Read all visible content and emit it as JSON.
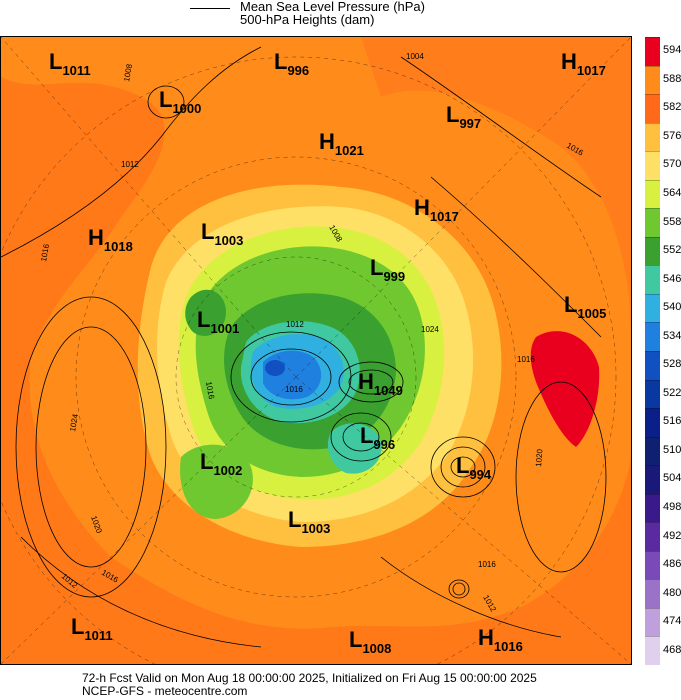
{
  "header": {
    "line1": "Mean Sea Level Pressure (hPa)",
    "line2": "500-hPa Heights (dam)"
  },
  "footer": {
    "line1": "72-h Fcst Valid on Mon Aug 18 00:00:00 2025, Initialized on Fri Aug 15 00:00:00 2025",
    "line2": "NCEP-GFS  - meteocentre.com"
  },
  "colorbar": {
    "levels": [
      "594",
      "588",
      "582",
      "576",
      "570",
      "564",
      "558",
      "552",
      "546",
      "540",
      "534",
      "528",
      "522",
      "516",
      "510",
      "504",
      "498",
      "492",
      "486",
      "480",
      "474",
      "468"
    ],
    "colors": [
      "#e8001e",
      "#ff8c1a",
      "#ff6a1a",
      "#ffc040",
      "#ffe066",
      "#d8f040",
      "#70c830",
      "#3aa030",
      "#40c8a0",
      "#30b0e0",
      "#2080e0",
      "#1050c0",
      "#0838a0",
      "#0a2088",
      "#102070",
      "#1a1878",
      "#3a1a8a",
      "#5a2aa0",
      "#7a4ab8",
      "#9a72c8",
      "#c0a0dc",
      "#e0d0ee"
    ]
  },
  "pressure_systems": [
    {
      "type": "L",
      "value": "1011"
    },
    {
      "type": "L",
      "value": "996"
    },
    {
      "type": "H",
      "value": "1017"
    },
    {
      "type": "L",
      "value": "1000"
    },
    {
      "type": "L",
      "value": "997"
    },
    {
      "type": "H",
      "value": "1021"
    },
    {
      "type": "H",
      "value": "1017"
    },
    {
      "type": "H",
      "value": "1018"
    },
    {
      "type": "L",
      "value": "1003"
    },
    {
      "type": "L",
      "value": "999"
    },
    {
      "type": "L",
      "value": "1005"
    },
    {
      "type": "L",
      "value": "1001"
    },
    {
      "type": "H",
      "value": "1049"
    },
    {
      "type": "L",
      "value": "996"
    },
    {
      "type": "L",
      "value": "1002"
    },
    {
      "type": "L",
      "value": "994"
    },
    {
      "type": "L",
      "value": "1003"
    },
    {
      "type": "L",
      "value": "1011"
    },
    {
      "type": "L",
      "value": "1008"
    },
    {
      "type": "H",
      "value": "1016"
    }
  ],
  "isobar_labels": [
    "1008",
    "1004",
    "1012",
    "1016",
    "1024",
    "1016",
    "1020",
    "1016",
    "1024",
    "1016",
    "1012",
    "1016",
    "1020",
    "1016",
    "1012",
    "1008",
    "1016",
    "1012"
  ]
}
